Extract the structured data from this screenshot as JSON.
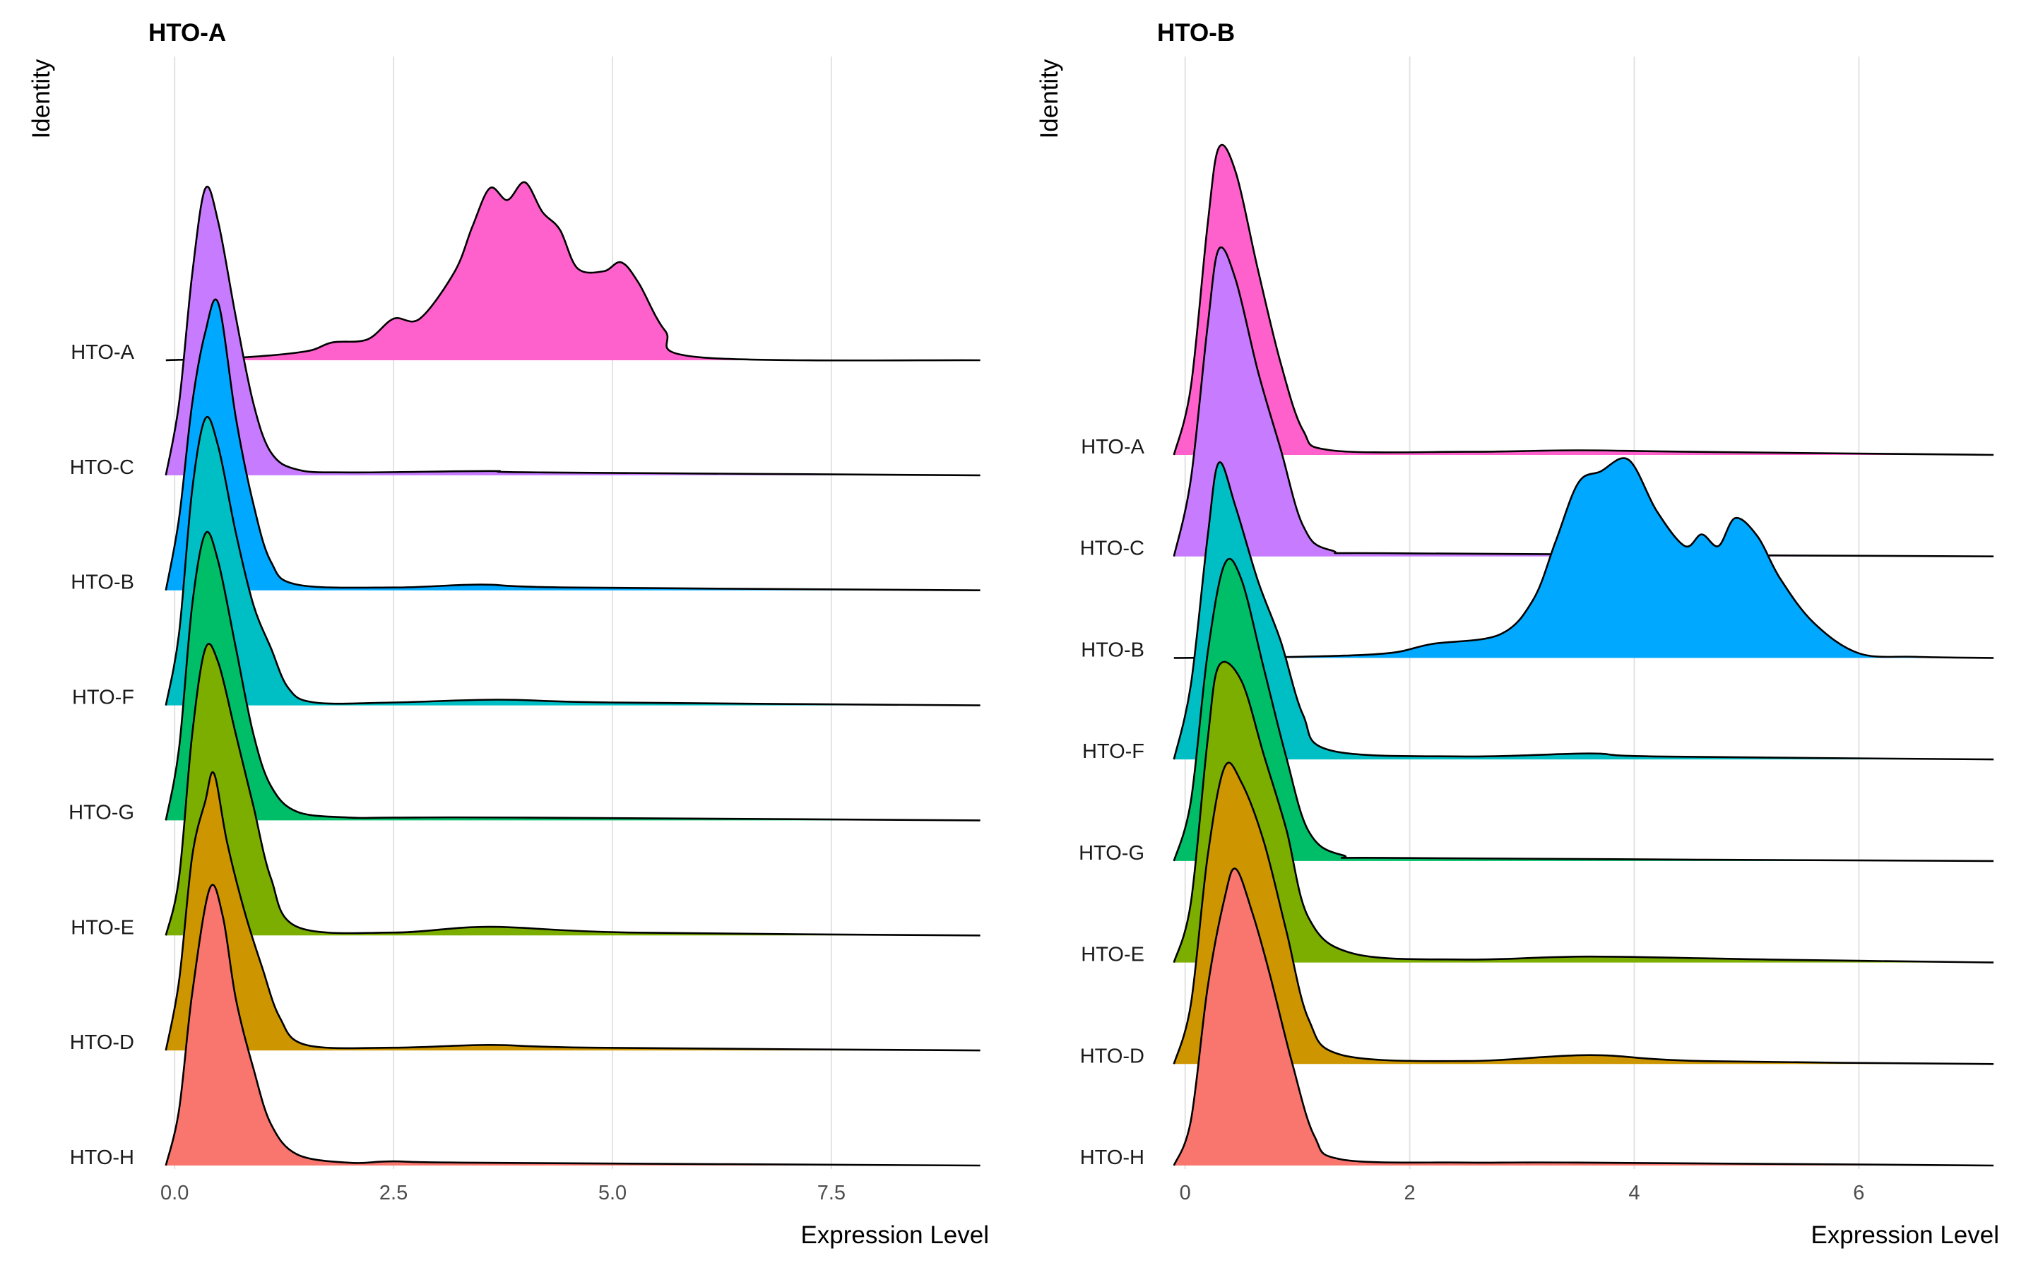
{
  "chart_data": [
    {
      "type": "ridgeline",
      "title": "HTO-A",
      "ylabel": "Identity",
      "xlabel": "Expression Level",
      "xlim": [
        -0.3,
        9.3
      ],
      "xticks": [
        0,
        2.5,
        5,
        7.5
      ],
      "xtick_labels": [
        "0.0",
        "2.5",
        "5.0",
        "7.5"
      ],
      "grid": "vertical-major",
      "categories": [
        "HTO-A",
        "HTO-C",
        "HTO-B",
        "HTO-F",
        "HTO-G",
        "HTO-E",
        "HTO-D",
        "HTO-H"
      ],
      "series": [
        {
          "name": "HTO-A",
          "color": "#FF61CC",
          "relative_peak_height": 1.5,
          "points": [
            [
              -0.1,
              0
            ],
            [
              0.8,
              0.01
            ],
            [
              1.5,
              0.03
            ],
            [
              1.8,
              0.06
            ],
            [
              2.2,
              0.07
            ],
            [
              2.5,
              0.14
            ],
            [
              2.8,
              0.14
            ],
            [
              3.2,
              0.3
            ],
            [
              3.4,
              0.45
            ],
            [
              3.6,
              0.58
            ],
            [
              3.8,
              0.54
            ],
            [
              4.0,
              0.6
            ],
            [
              4.2,
              0.5
            ],
            [
              4.4,
              0.44
            ],
            [
              4.6,
              0.31
            ],
            [
              4.9,
              0.3
            ],
            [
              5.1,
              0.33
            ],
            [
              5.3,
              0.26
            ],
            [
              5.6,
              0.1
            ],
            [
              6.0,
              0.01
            ],
            [
              9.2,
              0
            ]
          ]
        },
        {
          "name": "HTO-C",
          "color": "#C77CFF",
          "relative_peak_height": 1.45,
          "points": [
            [
              -0.1,
              0
            ],
            [
              0.05,
              0.25
            ],
            [
              0.2,
              0.7
            ],
            [
              0.35,
              1.0
            ],
            [
              0.5,
              0.88
            ],
            [
              0.7,
              0.55
            ],
            [
              0.9,
              0.25
            ],
            [
              1.1,
              0.08
            ],
            [
              1.4,
              0.02
            ],
            [
              2.0,
              0.01
            ],
            [
              3.6,
              0.015
            ],
            [
              4.2,
              0.01
            ],
            [
              9.2,
              0
            ]
          ]
        },
        {
          "name": "HTO-B",
          "color": "#00A9FF",
          "relative_peak_height": 1.45,
          "points": [
            [
              -0.1,
              0
            ],
            [
              0.05,
              0.25
            ],
            [
              0.2,
              0.65
            ],
            [
              0.35,
              0.9
            ],
            [
              0.5,
              1.0
            ],
            [
              0.7,
              0.6
            ],
            [
              0.9,
              0.3
            ],
            [
              1.1,
              0.1
            ],
            [
              1.4,
              0.02
            ],
            [
              2.5,
              0.01
            ],
            [
              3.5,
              0.02
            ],
            [
              4.5,
              0.01
            ],
            [
              9.2,
              0
            ]
          ]
        },
        {
          "name": "HTO-F",
          "color": "#00BFC4",
          "relative_peak_height": 1.45,
          "points": [
            [
              -0.1,
              0
            ],
            [
              0.05,
              0.25
            ],
            [
              0.2,
              0.75
            ],
            [
              0.35,
              1.0
            ],
            [
              0.5,
              0.9
            ],
            [
              0.7,
              0.6
            ],
            [
              0.9,
              0.35
            ],
            [
              1.1,
              0.2
            ],
            [
              1.3,
              0.06
            ],
            [
              1.6,
              0.01
            ],
            [
              2.5,
              0.01
            ],
            [
              3.7,
              0.02
            ],
            [
              5.0,
              0.01
            ],
            [
              9.2,
              0
            ]
          ]
        },
        {
          "name": "HTO-G",
          "color": "#00BE67",
          "relative_peak_height": 1.45,
          "points": [
            [
              -0.1,
              0
            ],
            [
              0.05,
              0.25
            ],
            [
              0.2,
              0.75
            ],
            [
              0.35,
              1.0
            ],
            [
              0.5,
              0.9
            ],
            [
              0.7,
              0.6
            ],
            [
              0.9,
              0.3
            ],
            [
              1.1,
              0.12
            ],
            [
              1.4,
              0.03
            ],
            [
              2.0,
              0.01
            ],
            [
              2.5,
              0.01
            ],
            [
              4.0,
              0.01
            ],
            [
              9.2,
              0
            ]
          ]
        },
        {
          "name": "HTO-E",
          "color": "#7CAE00",
          "relative_peak_height": 1.45,
          "points": [
            [
              -0.1,
              0
            ],
            [
              0.05,
              0.2
            ],
            [
              0.2,
              0.7
            ],
            [
              0.35,
              1.0
            ],
            [
              0.5,
              0.95
            ],
            [
              0.7,
              0.7
            ],
            [
              0.9,
              0.45
            ],
            [
              1.1,
              0.2
            ],
            [
              1.4,
              0.03
            ],
            [
              2.5,
              0.01
            ],
            [
              3.6,
              0.03
            ],
            [
              5.2,
              0.01
            ],
            [
              9.2,
              0
            ]
          ]
        },
        {
          "name": "HTO-D",
          "color": "#CD9600",
          "relative_peak_height": 1.4,
          "points": [
            [
              -0.1,
              0
            ],
            [
              0.05,
              0.25
            ],
            [
              0.2,
              0.7
            ],
            [
              0.35,
              0.9
            ],
            [
              0.45,
              1.0
            ],
            [
              0.6,
              0.75
            ],
            [
              0.8,
              0.5
            ],
            [
              1.0,
              0.3
            ],
            [
              1.2,
              0.12
            ],
            [
              1.5,
              0.02
            ],
            [
              2.5,
              0.01
            ],
            [
              3.6,
              0.02
            ],
            [
              4.8,
              0.01
            ],
            [
              9.2,
              0
            ]
          ]
        },
        {
          "name": "HTO-H",
          "color": "#F8766D",
          "relative_peak_height": 1.4,
          "points": [
            [
              -0.1,
              0
            ],
            [
              0.05,
              0.2
            ],
            [
              0.2,
              0.62
            ],
            [
              0.4,
              1.0
            ],
            [
              0.55,
              0.9
            ],
            [
              0.7,
              0.6
            ],
            [
              0.9,
              0.35
            ],
            [
              1.1,
              0.15
            ],
            [
              1.4,
              0.04
            ],
            [
              2.0,
              0.01
            ],
            [
              2.5,
              0.015
            ],
            [
              3.5,
              0.01
            ],
            [
              9.2,
              0
            ]
          ]
        }
      ]
    },
    {
      "type": "ridgeline",
      "title": "HTO-B",
      "ylabel": "Identity",
      "xlabel": "Expression Level",
      "xlim": [
        -0.25,
        7.25
      ],
      "xticks": [
        0,
        2,
        4,
        6
      ],
      "xtick_labels": [
        "0",
        "2",
        "4",
        "6"
      ],
      "grid": "vertical-major",
      "categories": [
        "HTO-A",
        "HTO-C",
        "HTO-B",
        "HTO-F",
        "HTO-G",
        "HTO-E",
        "HTO-D",
        "HTO-H"
      ],
      "series": [
        {
          "name": "HTO-A",
          "color": "#FF61CC",
          "relative_peak_height": 1.45,
          "points": [
            [
              -0.1,
              0
            ],
            [
              0.05,
              0.22
            ],
            [
              0.2,
              0.75
            ],
            [
              0.3,
              1.0
            ],
            [
              0.45,
              0.92
            ],
            [
              0.65,
              0.6
            ],
            [
              0.85,
              0.3
            ],
            [
              1.05,
              0.08
            ],
            [
              1.3,
              0.015
            ],
            [
              2.5,
              0.01
            ],
            [
              3.5,
              0.015
            ],
            [
              4.5,
              0.01
            ],
            [
              7.2,
              0
            ]
          ]
        },
        {
          "name": "HTO-C",
          "color": "#C77CFF",
          "relative_peak_height": 1.45,
          "points": [
            [
              -0.1,
              0
            ],
            [
              0.05,
              0.25
            ],
            [
              0.2,
              0.75
            ],
            [
              0.3,
              1.0
            ],
            [
              0.45,
              0.9
            ],
            [
              0.65,
              0.6
            ],
            [
              0.85,
              0.35
            ],
            [
              1.05,
              0.1
            ],
            [
              1.3,
              0.02
            ],
            [
              2.0,
              0.01
            ],
            [
              7.2,
              0
            ]
          ]
        },
        {
          "name": "HTO-B",
          "color": "#00A9FF",
          "relative_peak_height": 1.1,
          "points": [
            [
              -0.1,
              0
            ],
            [
              1.0,
              0.005
            ],
            [
              1.8,
              0.02
            ],
            [
              2.2,
              0.06
            ],
            [
              2.8,
              0.1
            ],
            [
              3.1,
              0.25
            ],
            [
              3.3,
              0.5
            ],
            [
              3.5,
              0.75
            ],
            [
              3.7,
              0.8
            ],
            [
              3.95,
              0.85
            ],
            [
              4.2,
              0.63
            ],
            [
              4.45,
              0.48
            ],
            [
              4.6,
              0.53
            ],
            [
              4.75,
              0.48
            ],
            [
              4.9,
              0.6
            ],
            [
              5.1,
              0.52
            ],
            [
              5.3,
              0.34
            ],
            [
              5.6,
              0.15
            ],
            [
              6.0,
              0.02
            ],
            [
              6.5,
              0.005
            ],
            [
              7.2,
              0
            ]
          ]
        },
        {
          "name": "HTO-F",
          "color": "#00BFC4",
          "relative_peak_height": 1.4,
          "points": [
            [
              -0.1,
              0
            ],
            [
              0.05,
              0.25
            ],
            [
              0.2,
              0.75
            ],
            [
              0.3,
              1.0
            ],
            [
              0.45,
              0.85
            ],
            [
              0.65,
              0.6
            ],
            [
              0.85,
              0.4
            ],
            [
              1.05,
              0.15
            ],
            [
              1.3,
              0.03
            ],
            [
              2.5,
              0.01
            ],
            [
              3.6,
              0.02
            ],
            [
              4.2,
              0.01
            ],
            [
              7.2,
              0
            ]
          ]
        },
        {
          "name": "HTO-G",
          "color": "#00BE67",
          "relative_peak_height": 1.4,
          "points": [
            [
              -0.1,
              0
            ],
            [
              0.05,
              0.2
            ],
            [
              0.2,
              0.7
            ],
            [
              0.35,
              1.0
            ],
            [
              0.5,
              0.95
            ],
            [
              0.7,
              0.65
            ],
            [
              0.9,
              0.35
            ],
            [
              1.1,
              0.1
            ],
            [
              1.4,
              0.02
            ],
            [
              2.0,
              0.01
            ],
            [
              7.2,
              0
            ]
          ]
        },
        {
          "name": "HTO-E",
          "color": "#7CAE00",
          "relative_peak_height": 1.4,
          "points": [
            [
              -0.1,
              0
            ],
            [
              0.05,
              0.2
            ],
            [
              0.2,
              0.75
            ],
            [
              0.3,
              1.0
            ],
            [
              0.5,
              0.95
            ],
            [
              0.7,
              0.7
            ],
            [
              0.9,
              0.45
            ],
            [
              1.1,
              0.15
            ],
            [
              1.5,
              0.03
            ],
            [
              2.5,
              0.01
            ],
            [
              3.6,
              0.02
            ],
            [
              5.2,
              0.01
            ],
            [
              7.2,
              0
            ]
          ]
        },
        {
          "name": "HTO-D",
          "color": "#CD9600",
          "relative_peak_height": 1.4,
          "points": [
            [
              -0.1,
              0
            ],
            [
              0.05,
              0.2
            ],
            [
              0.2,
              0.7
            ],
            [
              0.35,
              1.0
            ],
            [
              0.5,
              0.95
            ],
            [
              0.7,
              0.75
            ],
            [
              0.9,
              0.45
            ],
            [
              1.1,
              0.15
            ],
            [
              1.4,
              0.03
            ],
            [
              2.5,
              0.01
            ],
            [
              3.6,
              0.03
            ],
            [
              4.6,
              0.01
            ],
            [
              7.2,
              0
            ]
          ]
        },
        {
          "name": "HTO-H",
          "color": "#F8766D",
          "relative_peak_height": 1.4,
          "points": [
            [
              -0.1,
              0
            ],
            [
              0.05,
              0.15
            ],
            [
              0.2,
              0.6
            ],
            [
              0.35,
              0.9
            ],
            [
              0.45,
              1.0
            ],
            [
              0.6,
              0.85
            ],
            [
              0.75,
              0.65
            ],
            [
              0.95,
              0.35
            ],
            [
              1.15,
              0.1
            ],
            [
              1.4,
              0.02
            ],
            [
              2.5,
              0.01
            ],
            [
              3.5,
              0.01
            ],
            [
              7.2,
              0
            ]
          ]
        }
      ]
    }
  ]
}
